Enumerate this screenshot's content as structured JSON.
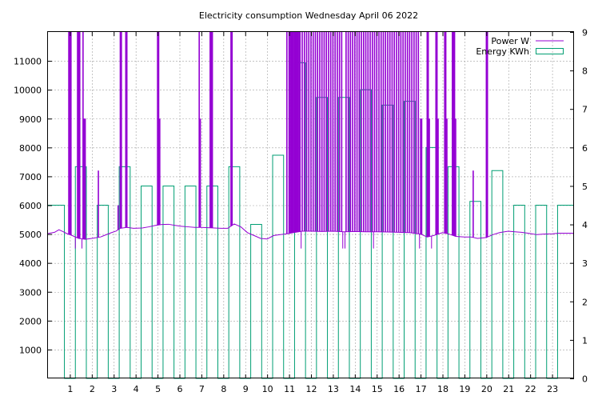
{
  "chart_data": {
    "type": "line",
    "title": "Electricity consumption Wednesday April 06 2022",
    "xlabel": "",
    "ylabel": "",
    "y2label": "",
    "xlim": [
      0,
      24
    ],
    "ylim": [
      0,
      12000
    ],
    "y2lim": [
      0,
      9
    ],
    "x_ticks": [
      1,
      2,
      3,
      4,
      5,
      6,
      7,
      8,
      9,
      10,
      11,
      12,
      13,
      14,
      15,
      16,
      17,
      18,
      19,
      20,
      21,
      22,
      23
    ],
    "y_ticks": [
      1000,
      2000,
      3000,
      4000,
      5000,
      6000,
      7000,
      8000,
      9000,
      10000,
      11000
    ],
    "y2_ticks": [
      0,
      1,
      2,
      3,
      4,
      5,
      6,
      7,
      8,
      9
    ],
    "grid": true,
    "legend_position": "top-right",
    "colors": {
      "power": "#9400d3",
      "energy": "#009e73"
    },
    "legend": [
      "Power W",
      "Energy KWh"
    ],
    "series": [
      {
        "name": "Energy KWh",
        "axis": "y2",
        "style": "steps",
        "x": [
          0,
          0.75,
          1.25,
          1.75,
          2.25,
          2.75,
          3.25,
          3.75,
          4.25,
          4.75,
          5.25,
          5.75,
          6.25,
          6.75,
          7.25,
          7.75,
          8.25,
          8.75,
          9.25,
          9.75,
          10.25,
          10.75,
          11.25,
          11.75,
          12.25,
          12.75,
          13.25,
          13.75,
          14.25,
          14.75,
          15.25,
          15.75,
          16.25,
          16.75,
          17.25,
          17.75,
          18.25,
          18.75,
          19.25,
          19.75,
          20.25,
          20.75,
          21.25,
          21.75,
          22.25,
          22.75,
          23.25
        ],
        "values": [
          4.5,
          0,
          5.5,
          0,
          4.5,
          0,
          5.5,
          0,
          5.0,
          0,
          5.0,
          0,
          5.0,
          0,
          5.0,
          0,
          5.5,
          0,
          4.0,
          0,
          5.8,
          0,
          8.2,
          0,
          7.3,
          0,
          7.3,
          0,
          7.5,
          0,
          7.1,
          0,
          7.2,
          0,
          6.0,
          0,
          5.5,
          0,
          4.6,
          0,
          5.4,
          0,
          4.5,
          0,
          4.5,
          0,
          4.5
        ]
      },
      {
        "name": "Power W",
        "axis": "y",
        "baseline": [
          [
            0,
            5020
          ],
          [
            0.3,
            5060
          ],
          [
            0.5,
            5150
          ],
          [
            0.7,
            5080
          ],
          [
            0.85,
            5020
          ],
          [
            1.1,
            4950
          ],
          [
            1.4,
            4850
          ],
          [
            1.7,
            4820
          ],
          [
            2.0,
            4850
          ],
          [
            2.4,
            4900
          ],
          [
            2.6,
            4960
          ],
          [
            2.9,
            5050
          ],
          [
            3.1,
            5100
          ],
          [
            3.3,
            5200
          ],
          [
            3.6,
            5230
          ],
          [
            3.9,
            5200
          ],
          [
            4.3,
            5210
          ],
          [
            4.6,
            5250
          ],
          [
            4.9,
            5300
          ],
          [
            5.2,
            5330
          ],
          [
            5.5,
            5340
          ],
          [
            5.8,
            5300
          ],
          [
            6.1,
            5270
          ],
          [
            6.4,
            5250
          ],
          [
            6.7,
            5230
          ],
          [
            7.0,
            5230
          ],
          [
            7.3,
            5220
          ],
          [
            7.6,
            5210
          ],
          [
            7.9,
            5200
          ],
          [
            8.2,
            5200
          ],
          [
            8.5,
            5350
          ],
          [
            8.8,
            5250
          ],
          [
            9.1,
            5050
          ],
          [
            9.4,
            4950
          ],
          [
            9.7,
            4850
          ],
          [
            10.0,
            4830
          ],
          [
            10.3,
            4950
          ],
          [
            10.6,
            4980
          ],
          [
            10.9,
            5010
          ],
          [
            11.2,
            5050
          ],
          [
            11.6,
            5100
          ],
          [
            12.0,
            5100
          ],
          [
            12.5,
            5090
          ],
          [
            13.0,
            5100
          ],
          [
            13.5,
            5080
          ],
          [
            14.0,
            5090
          ],
          [
            14.5,
            5080
          ],
          [
            15.0,
            5080
          ],
          [
            15.5,
            5070
          ],
          [
            16.0,
            5060
          ],
          [
            16.5,
            5050
          ],
          [
            17.0,
            5000
          ],
          [
            17.3,
            4900
          ],
          [
            17.6,
            4950
          ],
          [
            18.0,
            5050
          ],
          [
            18.3,
            5000
          ],
          [
            18.6,
            4920
          ],
          [
            19.0,
            4900
          ],
          [
            19.3,
            4900
          ],
          [
            19.6,
            4850
          ],
          [
            20.0,
            4880
          ],
          [
            20.3,
            4980
          ],
          [
            20.6,
            5050
          ],
          [
            21.0,
            5100
          ],
          [
            21.3,
            5080
          ],
          [
            21.6,
            5060
          ],
          [
            22.0,
            5020
          ],
          [
            22.3,
            4980
          ],
          [
            22.6,
            5000
          ],
          [
            23.0,
            5010
          ],
          [
            23.3,
            5030
          ],
          [
            24.0,
            5030
          ]
        ],
        "spikes": [
          [
            0.95,
            12000
          ],
          [
            1.0,
            12000
          ],
          [
            1.05,
            12000
          ],
          [
            1.35,
            12000
          ],
          [
            1.4,
            12000
          ],
          [
            1.45,
            12000
          ],
          [
            1.6,
            12000
          ],
          [
            1.65,
            9000
          ],
          [
            1.7,
            9000
          ],
          [
            2.3,
            7200
          ],
          [
            3.2,
            6000
          ],
          [
            3.3,
            12000
          ],
          [
            3.35,
            12000
          ],
          [
            3.55,
            12000
          ],
          [
            3.6,
            12000
          ],
          [
            5.0,
            12000
          ],
          [
            5.05,
            12000
          ],
          [
            5.1,
            9000
          ],
          [
            6.9,
            12000
          ],
          [
            6.95,
            9000
          ],
          [
            7.4,
            12000
          ],
          [
            7.45,
            12000
          ],
          [
            7.5,
            12000
          ],
          [
            8.35,
            12000
          ],
          [
            8.4,
            12000
          ],
          [
            10.9,
            12000
          ],
          [
            11.0,
            12000
          ],
          [
            11.05,
            12000
          ],
          [
            11.1,
            12000
          ],
          [
            11.15,
            12000
          ],
          [
            11.2,
            12000
          ],
          [
            11.25,
            12000
          ],
          [
            11.3,
            12000
          ],
          [
            11.35,
            12000
          ],
          [
            11.4,
            12000
          ],
          [
            11.45,
            12000
          ],
          [
            11.5,
            12000
          ],
          [
            11.6,
            12000
          ],
          [
            11.7,
            12000
          ],
          [
            11.8,
            12000
          ],
          [
            11.9,
            12000
          ],
          [
            12.0,
            12000
          ],
          [
            12.1,
            12000
          ],
          [
            12.2,
            12000
          ],
          [
            12.3,
            12000
          ],
          [
            12.4,
            12000
          ],
          [
            12.5,
            12000
          ],
          [
            12.6,
            12000
          ],
          [
            12.7,
            12000
          ],
          [
            12.8,
            12000
          ],
          [
            12.9,
            12000
          ],
          [
            13.0,
            12000
          ],
          [
            13.1,
            12000
          ],
          [
            13.2,
            12000
          ],
          [
            13.3,
            12000
          ],
          [
            13.4,
            12000
          ],
          [
            13.6,
            12000
          ],
          [
            13.7,
            12000
          ],
          [
            13.8,
            12000
          ],
          [
            13.9,
            12000
          ],
          [
            14.0,
            12000
          ],
          [
            14.1,
            12000
          ],
          [
            14.2,
            12000
          ],
          [
            14.3,
            12000
          ],
          [
            14.4,
            12000
          ],
          [
            14.5,
            12000
          ],
          [
            14.6,
            12000
          ],
          [
            14.7,
            12000
          ],
          [
            14.8,
            12000
          ],
          [
            14.9,
            12000
          ],
          [
            15.0,
            12000
          ],
          [
            15.1,
            12000
          ],
          [
            15.2,
            12000
          ],
          [
            15.3,
            12000
          ],
          [
            15.4,
            12000
          ],
          [
            15.5,
            12000
          ],
          [
            15.6,
            12000
          ],
          [
            15.7,
            12000
          ],
          [
            15.8,
            12000
          ],
          [
            15.9,
            12000
          ],
          [
            16.0,
            12000
          ],
          [
            16.1,
            12000
          ],
          [
            16.2,
            12000
          ],
          [
            16.3,
            12000
          ],
          [
            16.4,
            12000
          ],
          [
            16.5,
            12000
          ],
          [
            16.6,
            12000
          ],
          [
            16.7,
            12000
          ],
          [
            16.8,
            12000
          ],
          [
            16.9,
            12000
          ],
          [
            17.0,
            9000
          ],
          [
            17.05,
            9000
          ],
          [
            17.3,
            12000
          ],
          [
            17.35,
            12000
          ],
          [
            17.4,
            9000
          ],
          [
            17.7,
            12000
          ],
          [
            17.75,
            12000
          ],
          [
            17.8,
            9000
          ],
          [
            18.1,
            12000
          ],
          [
            18.15,
            12000
          ],
          [
            18.2,
            9000
          ],
          [
            18.45,
            12000
          ],
          [
            18.5,
            12000
          ],
          [
            18.55,
            12000
          ],
          [
            18.6,
            9000
          ],
          [
            19.4,
            7200
          ],
          [
            20.0,
            12000
          ],
          [
            20.05,
            12000
          ]
        ],
        "dips": [
          [
            1.25,
            4500
          ],
          [
            1.55,
            4500
          ],
          [
            11.55,
            4500
          ],
          [
            13.45,
            4500
          ],
          [
            13.55,
            4500
          ],
          [
            14.85,
            4500
          ],
          [
            16.95,
            4500
          ],
          [
            17.5,
            4500
          ]
        ]
      }
    ]
  }
}
